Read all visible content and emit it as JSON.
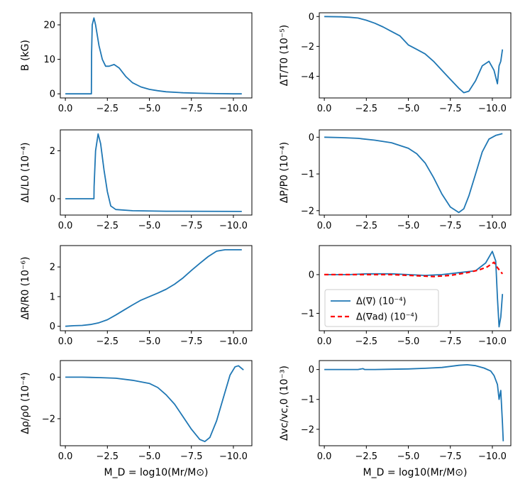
{
  "figure": {
    "xlabel": "M_D = log10(Mr/M⊙)",
    "series_color": "#1f77b4",
    "ad_color": "#ff0000"
  },
  "chart_data": [
    {
      "type": "line",
      "ylabel": "B (kG)",
      "xlim": [
        0.3,
        -11.1
      ],
      "ylim": [
        -1.2,
        23.5
      ],
      "xticks": [
        0,
        -2.5,
        -5,
        -7.5,
        -10
      ],
      "xtick_labels": [
        "0.0",
        "−2.5",
        "−5.0",
        "−7.5",
        "−10.0"
      ],
      "yticks": [
        0,
        10,
        20
      ],
      "ytick_labels": [
        "0",
        "10",
        "20"
      ],
      "series": [
        {
          "name": "B",
          "x": [
            0,
            -1.0,
            -1.55,
            -1.56,
            -1.6,
            -1.7,
            -1.8,
            -2.0,
            -2.2,
            -2.4,
            -2.6,
            -2.9,
            -3.2,
            -3.6,
            -4.0,
            -4.5,
            -5.0,
            -5.5,
            -6.0,
            -7.0,
            -8.0,
            -9.0,
            -10.0,
            -10.5
          ],
          "y": [
            0,
            0,
            0,
            12,
            20,
            22,
            20,
            14,
            10,
            8,
            8,
            8.5,
            7.5,
            5,
            3.2,
            2.0,
            1.3,
            0.9,
            0.6,
            0.3,
            0.15,
            0.05,
            0,
            0
          ]
        }
      ]
    },
    {
      "type": "line",
      "ylabel": "ΔT/T0 (10⁻⁵)",
      "xlim": [
        0.3,
        -11.1
      ],
      "ylim": [
        -5.45,
        0.25
      ],
      "xticks": [
        0,
        -2.5,
        -5,
        -7.5,
        -10
      ],
      "xtick_labels": [
        "0.0",
        "−2.5",
        "−5.0",
        "−7.5",
        "−10.0"
      ],
      "yticks": [
        0,
        -2,
        -4
      ],
      "ytick_labels": [
        "0",
        "−2",
        "−4"
      ],
      "series": [
        {
          "name": "ΔT/T0",
          "x": [
            0,
            -1.0,
            -1.5,
            -2.0,
            -2.5,
            -3.0,
            -3.5,
            -4.0,
            -4.5,
            -5.0,
            -5.5,
            -6.0,
            -6.5,
            -7.0,
            -7.5,
            -8.0,
            -8.3,
            -8.6,
            -9.0,
            -9.4,
            -9.8,
            -10.1,
            -10.3,
            -10.4,
            -10.5,
            -10.6
          ],
          "y": [
            0,
            -0.02,
            -0.05,
            -0.1,
            -0.25,
            -0.45,
            -0.7,
            -1.0,
            -1.3,
            -1.9,
            -2.2,
            -2.5,
            -3.0,
            -3.6,
            -4.2,
            -4.8,
            -5.1,
            -5.0,
            -4.3,
            -3.3,
            -3.0,
            -3.6,
            -4.5,
            -3.3,
            -3.0,
            -2.2
          ]
        }
      ]
    },
    {
      "type": "line",
      "ylabel": "ΔL/L0 (10⁻⁴)",
      "xlim": [
        0.3,
        -11.1
      ],
      "ylim": [
        -0.68,
        2.87
      ],
      "xticks": [
        0,
        -2.5,
        -5,
        -7.5,
        -10
      ],
      "xtick_labels": [
        "0.0",
        "−2.5",
        "−5.0",
        "−7.5",
        "−10.0"
      ],
      "yticks": [
        0,
        2
      ],
      "ytick_labels": [
        "0",
        "2"
      ],
      "series": [
        {
          "name": "ΔL/L0",
          "x": [
            0,
            -1.0,
            -1.7,
            -1.71,
            -1.8,
            -1.95,
            -2.1,
            -2.3,
            -2.5,
            -2.7,
            -3.0,
            -4.0,
            -6.0,
            -10.5
          ],
          "y": [
            0,
            0,
            0,
            0.5,
            2.0,
            2.7,
            2.3,
            1.2,
            0.3,
            -0.3,
            -0.45,
            -0.5,
            -0.52,
            -0.53
          ]
        }
      ]
    },
    {
      "type": "line",
      "ylabel": "ΔP/P0 (10⁻⁴)",
      "xlim": [
        0.3,
        -11.1
      ],
      "ylim": [
        -2.12,
        0.2
      ],
      "xticks": [
        0,
        -2.5,
        -5,
        -7.5,
        -10
      ],
      "xtick_labels": [
        "0.0",
        "−2.5",
        "−5.0",
        "−7.5",
        "−10.0"
      ],
      "yticks": [
        0,
        -1,
        -2
      ],
      "ytick_labels": [
        "0",
        "−1",
        "−2"
      ],
      "series": [
        {
          "name": "ΔP/P0",
          "x": [
            0,
            -1.0,
            -2.0,
            -3.0,
            -4.0,
            -5.0,
            -5.5,
            -6.0,
            -6.5,
            -7.0,
            -7.5,
            -8.0,
            -8.3,
            -8.6,
            -9.0,
            -9.4,
            -9.8,
            -10.2,
            -10.6
          ],
          "y": [
            0,
            -0.01,
            -0.03,
            -0.08,
            -0.15,
            -0.3,
            -0.45,
            -0.7,
            -1.1,
            -1.55,
            -1.9,
            -2.05,
            -1.95,
            -1.6,
            -1.0,
            -0.4,
            -0.05,
            0.05,
            0.1
          ]
        }
      ]
    },
    {
      "type": "line",
      "ylabel": "ΔR/R0 (10⁻⁶)",
      "xlim": [
        0.3,
        -11.1
      ],
      "ylim": [
        -0.15,
        2.72
      ],
      "xticks": [
        0,
        -2.5,
        -5,
        -7.5,
        -10
      ],
      "xtick_labels": [
        "0.0",
        "−2.5",
        "−5.0",
        "−7.5",
        "−10.0"
      ],
      "yticks": [
        0,
        1,
        2
      ],
      "ytick_labels": [
        "0",
        "1",
        "2"
      ],
      "series": [
        {
          "name": "ΔR/R0",
          "x": [
            0,
            -0.5,
            -1.0,
            -1.5,
            -2.0,
            -2.5,
            -3.0,
            -3.5,
            -4.0,
            -4.5,
            -5.0,
            -5.5,
            -6.0,
            -6.5,
            -7.0,
            -7.5,
            -8.0,
            -8.5,
            -9.0,
            -9.5,
            -10.0,
            -10.5
          ],
          "y": [
            0,
            0.02,
            0.03,
            0.06,
            0.12,
            0.22,
            0.38,
            0.55,
            0.72,
            0.88,
            1.0,
            1.12,
            1.25,
            1.42,
            1.63,
            1.88,
            2.12,
            2.35,
            2.53,
            2.58,
            2.58,
            2.58
          ]
        }
      ]
    },
    {
      "type": "line",
      "ylabel": "",
      "xlim": [
        0.3,
        -11.1
      ],
      "ylim": [
        -1.45,
        0.75
      ],
      "xticks": [
        0,
        -2.5,
        -5,
        -7.5,
        -10
      ],
      "xtick_labels": [
        "0.0",
        "−2.5",
        "−5.0",
        "−7.5",
        "−10.0"
      ],
      "yticks": [
        0,
        -1
      ],
      "ytick_labels": [
        "0",
        "−1"
      ],
      "legend": "lower-left",
      "series": [
        {
          "name": "Δ(∇) (10⁻⁴)",
          "style": "solid",
          "x": [
            0,
            -1.5,
            -2.5,
            -4.0,
            -5.0,
            -6.0,
            -7.0,
            -8.0,
            -9.0,
            -9.6,
            -10.0,
            -10.2,
            -10.3,
            -10.4,
            -10.5,
            -10.6
          ],
          "y": [
            0,
            0,
            0.02,
            0.02,
            0.0,
            -0.02,
            0.0,
            0.05,
            0.1,
            0.3,
            0.6,
            0.35,
            -0.6,
            -1.35,
            -1.1,
            -0.5
          ]
        },
        {
          "name": "Δ(∇ad) (10⁻⁴)",
          "style": "dashed",
          "x": [
            0,
            -2.0,
            -4.0,
            -5.5,
            -6.5,
            -7.5,
            -8.5,
            -9.2,
            -9.7,
            -10.1,
            -10.3,
            -10.6
          ],
          "y": [
            0,
            0,
            0,
            -0.03,
            -0.05,
            -0.02,
            0.05,
            0.12,
            0.2,
            0.32,
            0.18,
            0.02
          ]
        }
      ]
    },
    {
      "type": "line",
      "ylabel": "Δρ/ρ0 (10⁻⁴)",
      "xlim": [
        0.3,
        -11.1
      ],
      "ylim": [
        -3.3,
        0.8
      ],
      "xticks": [
        0,
        -2.5,
        -5,
        -7.5,
        -10
      ],
      "xtick_labels": [
        "0.0",
        "−2.5",
        "−5.0",
        "−7.5",
        "−10.0"
      ],
      "yticks": [
        0,
        -2
      ],
      "ytick_labels": [
        "0",
        "−2"
      ],
      "series": [
        {
          "name": "Δρ/ρ0",
          "x": [
            0,
            -1.0,
            -2.0,
            -3.0,
            -4.0,
            -5.0,
            -5.5,
            -6.0,
            -6.5,
            -7.0,
            -7.5,
            -8.0,
            -8.3,
            -8.6,
            -9.0,
            -9.4,
            -9.8,
            -10.1,
            -10.3,
            -10.6
          ],
          "y": [
            0,
            0,
            -0.02,
            -0.05,
            -0.15,
            -0.3,
            -0.5,
            -0.85,
            -1.3,
            -1.9,
            -2.5,
            -3.0,
            -3.1,
            -2.9,
            -2.1,
            -1.0,
            0.1,
            0.5,
            0.55,
            0.35
          ]
        }
      ]
    },
    {
      "type": "line",
      "ylabel": "Δvc/vc,0 (10⁻³)",
      "xlim": [
        0.3,
        -11.1
      ],
      "ylim": [
        -2.55,
        0.3
      ],
      "xticks": [
        0,
        -2.5,
        -5,
        -7.5,
        -10
      ],
      "xtick_labels": [
        "0.0",
        "−2.5",
        "−5.0",
        "−7.5",
        "−10.0"
      ],
      "yticks": [
        0,
        -1,
        -2
      ],
      "ytick_labels": [
        "0",
        "−1",
        "−2"
      ],
      "series": [
        {
          "name": "Δvc/vc,0",
          "x": [
            0,
            -2.0,
            -2.3,
            -2.4,
            -3.0,
            -4.0,
            -5.0,
            -6.0,
            -7.0,
            -8.0,
            -8.5,
            -9.0,
            -9.5,
            -9.9,
            -10.1,
            -10.3,
            -10.4,
            -10.5,
            -10.6,
            -10.65
          ],
          "y": [
            0,
            0,
            0.03,
            0.0,
            0.0,
            0.01,
            0.02,
            0.04,
            0.07,
            0.14,
            0.16,
            0.13,
            0.05,
            -0.05,
            -0.2,
            -0.5,
            -1.0,
            -0.7,
            -1.8,
            -2.4
          ]
        }
      ]
    }
  ]
}
